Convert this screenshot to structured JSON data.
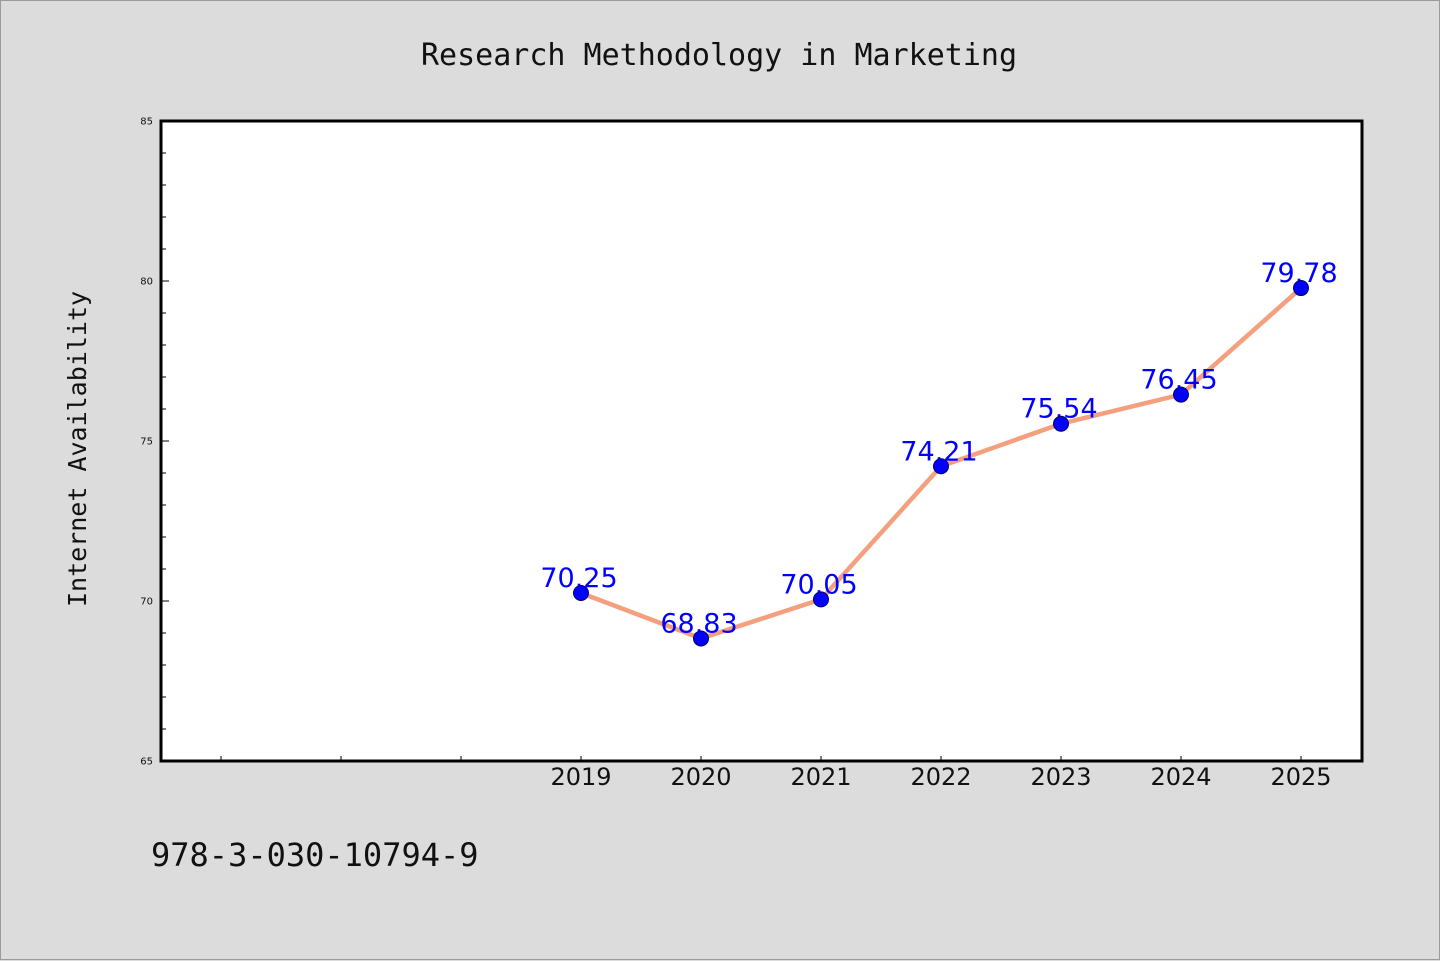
{
  "chart_data": {
    "type": "line",
    "title": "Research Methodology in Marketing",
    "xlabel": "",
    "ylabel": "Internet Availability",
    "categories": [
      "2019",
      "2020",
      "2021",
      "2022",
      "2023",
      "2024",
      "2025"
    ],
    "series": [
      {
        "values": [
          70.25,
          68.83,
          70.05,
          74.21,
          75.54,
          76.45,
          79.78
        ],
        "value_labels": [
          "70.25",
          "68.83",
          "70.05",
          "74.21",
          "75.54",
          "76.45",
          "79.78"
        ],
        "line_color": "#f4a07e",
        "marker_color": "#0000ff"
      }
    ],
    "ylim": [
      65,
      85
    ],
    "yticks": [
      65,
      70,
      75,
      80,
      85
    ],
    "ytick_labels": [
      "65",
      "70",
      "75",
      "80",
      "85"
    ],
    "data_label_color": "#0000ff",
    "grid": false,
    "legend": "none"
  },
  "footer": {
    "isbn": "978-3-030-10794-9"
  }
}
